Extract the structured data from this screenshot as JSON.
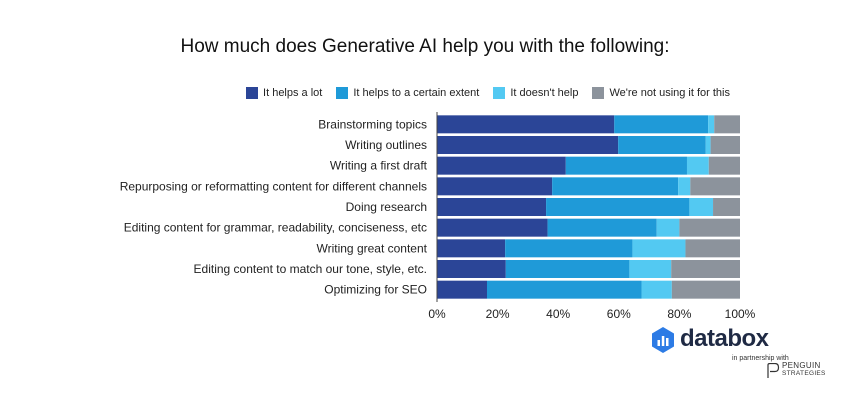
{
  "chart_data": {
    "type": "bar",
    "orientation": "horizontal",
    "stacked": true,
    "title": "How much does Generative AI help you with the following:",
    "categories": [
      "Brainstorming topics",
      "Writing outlines",
      "Writing a first draft",
      "Repurposing or reformatting content for different channels",
      "Doing research",
      "Editing content for grammar, readability, conciseness, etc",
      "Writing great content",
      "Editing content to match our tone, style, etc.",
      "Optimizing for SEO"
    ],
    "series": [
      {
        "name": "It helps a lot",
        "color": "#2b4597",
        "values": [
          58.5,
          59.8,
          42.5,
          38,
          36,
          36.5,
          22.5,
          22.7,
          16.5
        ]
      },
      {
        "name": "It helps to a certain extent",
        "color": "#1f9ad8",
        "values": [
          31,
          28.9,
          40,
          41.6,
          47.3,
          36,
          42,
          40.8,
          51
        ]
      },
      {
        "name": "It doesn't help",
        "color": "#53c9f2",
        "values": [
          2,
          1.6,
          7.2,
          4,
          7.8,
          7.5,
          17.5,
          13.8,
          10
        ]
      },
      {
        "name": "We're not using it for this",
        "color": "#8c939c",
        "values": [
          8.5,
          9.7,
          10.3,
          16.4,
          8.9,
          20,
          18,
          22.7,
          22.5
        ]
      }
    ],
    "xlim": [
      0,
      100
    ],
    "xticks": [
      "0%",
      "20%",
      "40%",
      "60%",
      "80%",
      "100%"
    ],
    "legend_position": "top-right",
    "grid": false
  },
  "branding": {
    "name": "databox",
    "partner_text": "in partnership with",
    "partner_line1": "PENGUIN",
    "partner_line2": "STRATEGIES",
    "logo_icon": "databox-logo-icon",
    "brand_color": "#1f2a44",
    "accent_color": "#2c7be5"
  }
}
